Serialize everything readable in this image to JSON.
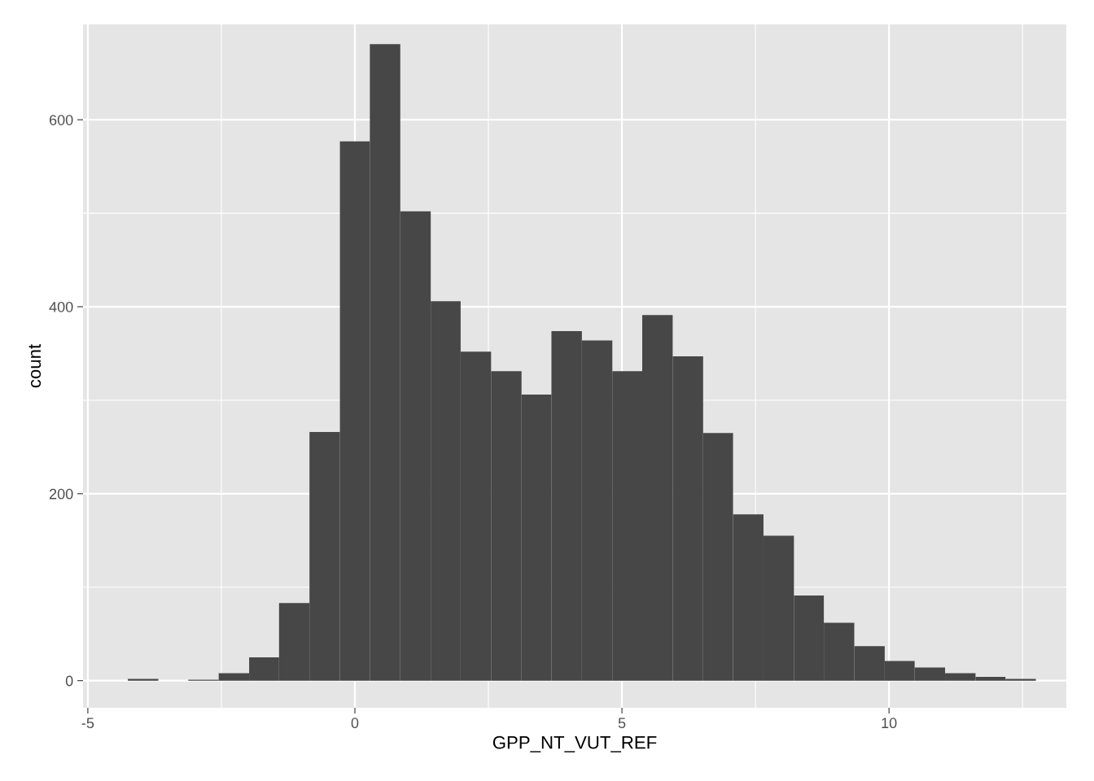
{
  "chart_data": {
    "type": "histogram",
    "xlabel": "GPP_NT_VUT_REF",
    "ylabel": "count",
    "color": "#474747",
    "bins": [
      -4.25,
      -3.68,
      -3.12,
      -2.55,
      -1.98,
      -1.42,
      -0.85,
      -0.28,
      0.28,
      0.85,
      1.42,
      1.98,
      2.55,
      3.12,
      3.68,
      4.25,
      4.82,
      5.38,
      5.95,
      6.52,
      7.08,
      7.65,
      8.22,
      8.78,
      9.35,
      9.92,
      10.48,
      11.05,
      11.62,
      12.18,
      12.75
    ],
    "values": [
      2,
      0,
      1,
      8,
      25,
      83,
      266,
      577,
      681,
      502,
      406,
      352,
      331,
      306,
      374,
      364,
      331,
      391,
      347,
      265,
      178,
      155,
      91,
      62,
      37,
      21,
      14,
      8,
      4,
      2
    ],
    "xlim": [
      -5.09,
      13.32
    ],
    "ylim": [
      -29,
      702
    ],
    "xticks": [
      -5,
      {
        "value": -2.5,
        "label": null
      },
      0,
      {
        "value": 2.5,
        "label": null
      },
      5,
      {
        "value": 7.5,
        "label": null
      },
      10,
      {
        "value": 12.5,
        "label": null
      }
    ],
    "yticks": [
      0,
      {
        "value": 100,
        "label": null
      },
      200,
      {
        "value": 300,
        "label": null
      },
      400,
      {
        "value": 500,
        "label": null
      },
      600
    ],
    "grid": true
  }
}
